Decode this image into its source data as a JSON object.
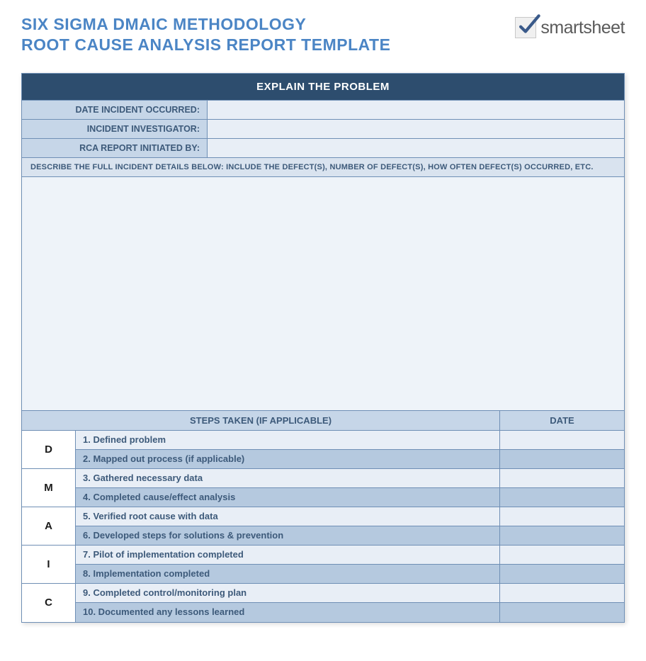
{
  "header": {
    "title_line1": "SIX SIGMA DMAIC METHODOLOGY",
    "title_line2": "ROOT CAUSE ANALYSIS REPORT TEMPLATE",
    "logo_text": "smartsheet"
  },
  "colors": {
    "title_color": "#4b85c5",
    "section_dark_bg": "#2d4d6e",
    "section_dark_fg": "#ffffff",
    "label_bg": "#c6d6e8",
    "label_fg": "#3d5a7a",
    "value_bg": "#e8eef6",
    "describe_header_bg": "#d9e3ef",
    "describe_body_bg": "#eef3f9",
    "row_light": "#e8eef6",
    "row_dark": "#b5c9df",
    "border": "#6f8fb5",
    "dmaic_bg": "#ffffff",
    "dmaic_fg": "#1a1a1a",
    "logo_check_bg": "#f0f0f0",
    "logo_check_color": "#3a5a8a"
  },
  "section_explain": {
    "header": "EXPLAIN THE PROBLEM",
    "fields": [
      {
        "label": "DATE INCIDENT OCCURRED:",
        "value": ""
      },
      {
        "label": "INCIDENT INVESTIGATOR:",
        "value": ""
      },
      {
        "label": "RCA REPORT INITIATED BY:",
        "value": ""
      }
    ],
    "describe_header": "DESCRIBE THE FULL INCIDENT DETAILS BELOW: INCLUDE THE DEFECT(S), NUMBER OF DEFECT(S), HOW OFTEN DEFECT(S) OCCURRED, ETC.",
    "describe_body": ""
  },
  "section_steps": {
    "header_main": "STEPS TAKEN (IF APPLICABLE)",
    "header_date": "DATE",
    "dmaic": [
      "D",
      "M",
      "A",
      "I",
      "C"
    ],
    "rows": [
      {
        "label": "1. Defined problem",
        "date": "",
        "shade": "light"
      },
      {
        "label": "2. Mapped out process (if applicable)",
        "date": "",
        "shade": "dark"
      },
      {
        "label": "3. Gathered necessary data",
        "date": "",
        "shade": "light"
      },
      {
        "label": "4. Completed cause/effect analysis",
        "date": "",
        "shade": "dark"
      },
      {
        "label": "5. Verified root cause with data",
        "date": "",
        "shade": "light"
      },
      {
        "label": "6. Developed steps for solutions & prevention",
        "date": "",
        "shade": "dark"
      },
      {
        "label": "7. Pilot of implementation completed",
        "date": "",
        "shade": "light"
      },
      {
        "label": "8. Implementation completed",
        "date": "",
        "shade": "dark"
      },
      {
        "label": "9. Completed control/monitoring plan",
        "date": "",
        "shade": "light"
      },
      {
        "label": "10. Documented any lessons learned",
        "date": "",
        "shade": "dark"
      }
    ]
  }
}
